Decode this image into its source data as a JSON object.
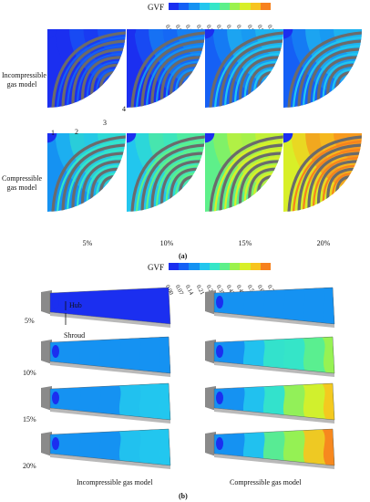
{
  "legend_a": {
    "title": "GVF",
    "ticks": [
      "0.00",
      "0.07",
      "0.14",
      "0.21",
      "0.28",
      "0.35",
      "0.42",
      "0.49",
      "0.56",
      "0.63",
      "0.70"
    ]
  },
  "legend_b": {
    "title": "GVF",
    "ticks": [
      "0.00",
      "0.07",
      "0.14",
      "0.21",
      "0.28",
      "0.35",
      "0.42",
      "0.49",
      "0.56",
      "0.63",
      "0.70"
    ]
  },
  "colorscale": [
    "#1b2ff0",
    "#1560f5",
    "#1592f2",
    "#22c6ee",
    "#35e6c8",
    "#5ef08a",
    "#9cf24d",
    "#d8ef28",
    "#f7c41e",
    "#f7811e",
    "#e8311b"
  ],
  "panel_a": {
    "row_labels": [
      "Incompressible gas model",
      "Compressible gas model"
    ],
    "blade_numbers": [
      "1",
      "2",
      "3",
      "4"
    ],
    "percent_labels": [
      "5%",
      "10%",
      "15%",
      "20%"
    ],
    "caption": "(a)"
  },
  "panel_b": {
    "hub_label": "Hub",
    "shroud_label": "Shroud",
    "row_labels": [
      "5%",
      "10%",
      "15%",
      "20%"
    ],
    "column_labels": [
      "Incompressible gas model",
      "Compressible gas model"
    ],
    "caption": "(b)"
  }
}
